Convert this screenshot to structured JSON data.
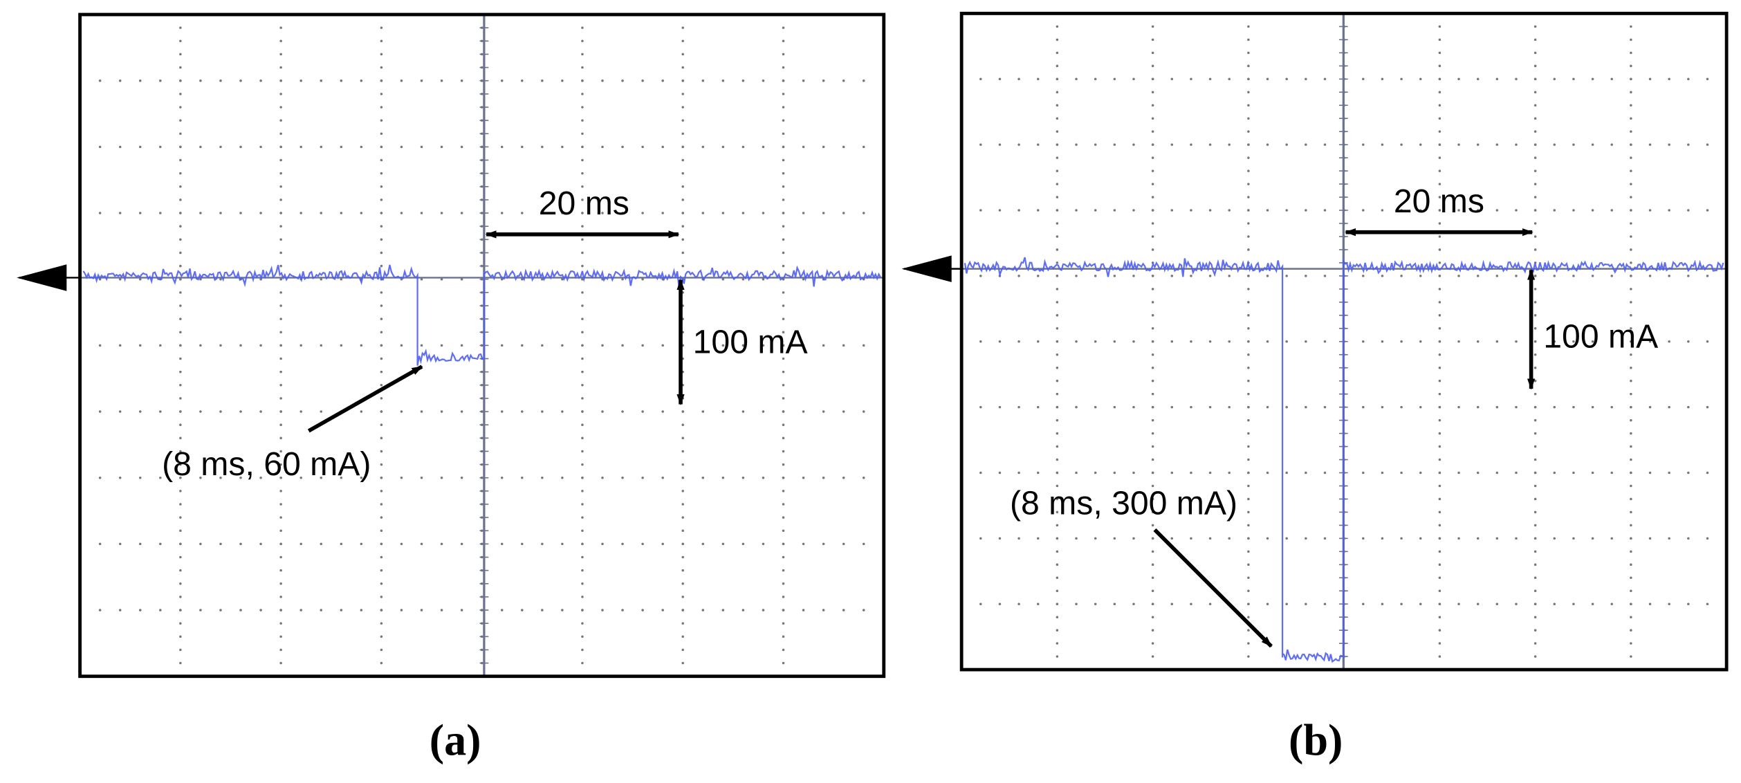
{
  "panels": [
    {
      "time_scale": "20 ms",
      "current_scale": "100 mA",
      "pulse_label": "(8 ms, 60 mA)",
      "caption": "(a)"
    },
    {
      "time_scale": "20 ms",
      "current_scale": "100 mA",
      "pulse_label": "(8 ms, 300 mA)",
      "caption": "(b)"
    }
  ]
}
